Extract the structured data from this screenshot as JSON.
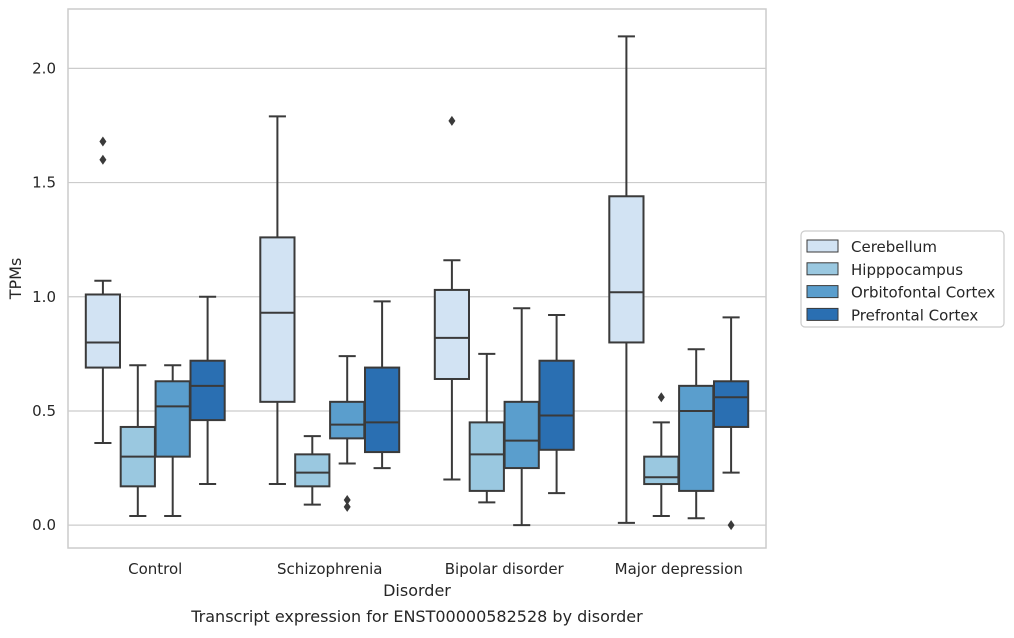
{
  "chart_data": {
    "type": "boxplot",
    "title": "",
    "caption": "Transcript expression for ENST00000582528 by disorder",
    "xlabel": "Disorder",
    "ylabel": "TPMs",
    "ylim": [
      -0.1,
      2.26
    ],
    "yticks": [
      0.0,
      0.5,
      1.0,
      1.5,
      2.0
    ],
    "ytick_labels": [
      "0.0",
      "0.5",
      "1.0",
      "1.5",
      "2.0"
    ],
    "grid": "horizontal",
    "legend_position": "right",
    "categories": [
      "Control",
      "Schizophrenia",
      "Bipolar disorder",
      "Major depression"
    ],
    "series": [
      {
        "name": "Cerebellum",
        "color": "#d2e3f3",
        "boxes": [
          {
            "whisker_low": 0.36,
            "q1": 0.69,
            "median": 0.8,
            "q3": 1.01,
            "whisker_high": 1.07,
            "outliers": [
              1.6,
              1.68
            ]
          },
          {
            "whisker_low": 0.18,
            "q1": 0.54,
            "median": 0.93,
            "q3": 1.26,
            "whisker_high": 1.79,
            "outliers": []
          },
          {
            "whisker_low": 0.2,
            "q1": 0.64,
            "median": 0.82,
            "q3": 1.03,
            "whisker_high": 1.16,
            "outliers": [
              1.77
            ]
          },
          {
            "whisker_low": 0.01,
            "q1": 0.8,
            "median": 1.02,
            "q3": 1.44,
            "whisker_high": 2.14,
            "outliers": []
          }
        ]
      },
      {
        "name": "Hipppocampus",
        "color": "#9ac8e0",
        "boxes": [
          {
            "whisker_low": 0.04,
            "q1": 0.17,
            "median": 0.3,
            "q3": 0.43,
            "whisker_high": 0.7,
            "outliers": []
          },
          {
            "whisker_low": 0.09,
            "q1": 0.17,
            "median": 0.23,
            "q3": 0.31,
            "whisker_high": 0.39,
            "outliers": []
          },
          {
            "whisker_low": 0.1,
            "q1": 0.15,
            "median": 0.31,
            "q3": 0.45,
            "whisker_high": 0.75,
            "outliers": []
          },
          {
            "whisker_low": 0.04,
            "q1": 0.18,
            "median": 0.21,
            "q3": 0.3,
            "whisker_high": 0.45,
            "outliers": [
              0.56
            ]
          }
        ]
      },
      {
        "name": "Orbitofontal Cortex",
        "color": "#5a9ecd",
        "boxes": [
          {
            "whisker_low": 0.04,
            "q1": 0.3,
            "median": 0.52,
            "q3": 0.63,
            "whisker_high": 0.7,
            "outliers": []
          },
          {
            "whisker_low": 0.27,
            "q1": 0.38,
            "median": 0.44,
            "q3": 0.54,
            "whisker_high": 0.74,
            "outliers": [
              0.08,
              0.11
            ]
          },
          {
            "whisker_low": 0.0,
            "q1": 0.25,
            "median": 0.37,
            "q3": 0.54,
            "whisker_high": 0.95,
            "outliers": []
          },
          {
            "whisker_low": 0.03,
            "q1": 0.15,
            "median": 0.5,
            "q3": 0.61,
            "whisker_high": 0.77,
            "outliers": []
          }
        ]
      },
      {
        "name": "Prefrontal Cortex",
        "color": "#2a6fb2",
        "boxes": [
          {
            "whisker_low": 0.18,
            "q1": 0.46,
            "median": 0.61,
            "q3": 0.72,
            "whisker_high": 1.0,
            "outliers": []
          },
          {
            "whisker_low": 0.25,
            "q1": 0.32,
            "median": 0.45,
            "q3": 0.69,
            "whisker_high": 0.98,
            "outliers": []
          },
          {
            "whisker_low": 0.14,
            "q1": 0.33,
            "median": 0.48,
            "q3": 0.72,
            "whisker_high": 0.92,
            "outliers": []
          },
          {
            "whisker_low": 0.23,
            "q1": 0.43,
            "median": 0.56,
            "q3": 0.63,
            "whisker_high": 0.91,
            "outliers": [
              0.0
            ]
          }
        ]
      }
    ]
  },
  "style": {
    "grid_color": "#cccccc",
    "frame_color": "#cccccc",
    "line_color": "#3a3a3a"
  }
}
